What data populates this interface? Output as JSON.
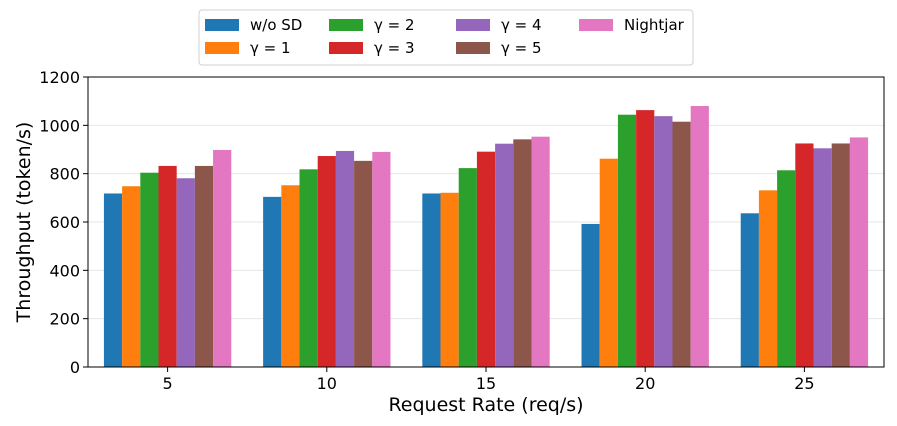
{
  "chart_data": {
    "type": "bar",
    "title": "",
    "xlabel": "Request Rate (req/s)",
    "ylabel": "Throughput (token/s)",
    "categories": [
      "5",
      "10",
      "15",
      "20",
      "25"
    ],
    "ylim": [
      0,
      1200
    ],
    "yticks": [
      "0",
      "200",
      "400",
      "600",
      "800",
      "1000",
      "1200"
    ],
    "grid": "horizontal",
    "legend_position": "top-center",
    "series": [
      {
        "name": "w/o SD",
        "color": "#1f77b4",
        "values": [
          718,
          704,
          718,
          592,
          636
        ]
      },
      {
        "name": "γ = 1",
        "color": "#ff7f0e",
        "values": [
          748,
          752,
          721,
          862,
          731
        ]
      },
      {
        "name": "γ = 2",
        "color": "#2ca02c",
        "values": [
          804,
          818,
          823,
          1044,
          814
        ]
      },
      {
        "name": "γ = 3",
        "color": "#d62728",
        "values": [
          832,
          873,
          891,
          1063,
          925
        ]
      },
      {
        "name": "γ = 4",
        "color": "#9467bd",
        "values": [
          781,
          894,
          924,
          1038,
          905
        ]
      },
      {
        "name": "γ = 5",
        "color": "#8c564b",
        "values": [
          832,
          853,
          942,
          1015,
          925
        ]
      },
      {
        "name": "Nightjar",
        "color": "#e377c2",
        "values": [
          898,
          890,
          953,
          1080,
          950
        ]
      }
    ]
  }
}
